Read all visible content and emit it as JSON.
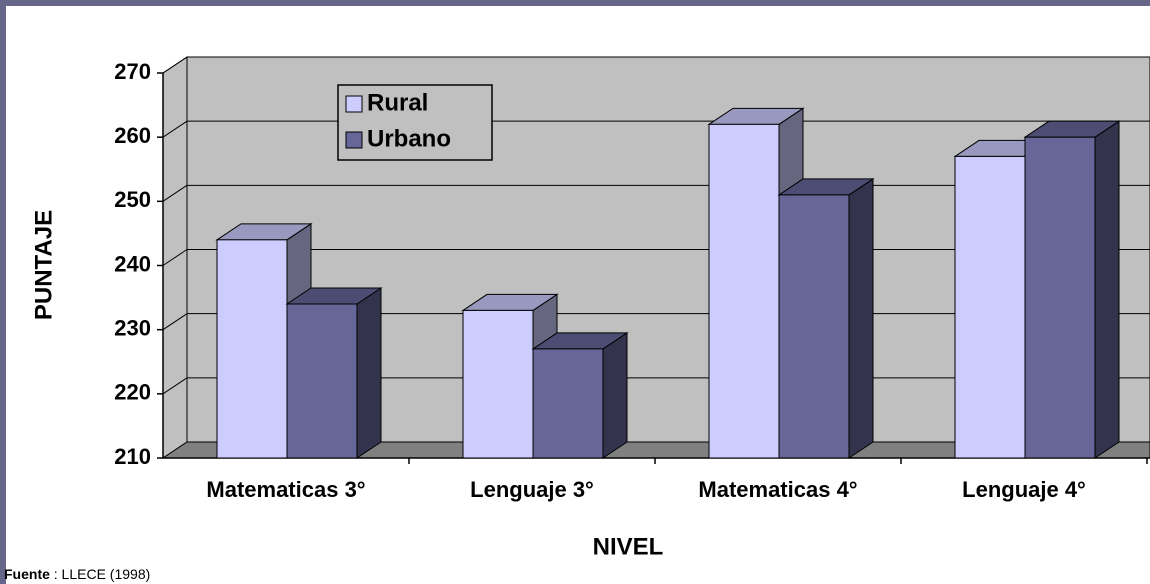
{
  "chart_data": {
    "type": "bar3d",
    "x_label": "NIVEL",
    "y_label": "PUNTAJE",
    "categories": [
      "Matematicas 3°",
      "Lenguaje 3°",
      "Matematicas 4°",
      "Lenguaje 4°"
    ],
    "series": [
      {
        "name": "Rural",
        "color": "#ccccff",
        "values": [
          244,
          233,
          262,
          257
        ]
      },
      {
        "name": "Urbano",
        "color": "#666699",
        "values": [
          234,
          227,
          251,
          260
        ]
      }
    ],
    "ylim": [
      210,
      270
    ],
    "yticks": [
      210,
      220,
      230,
      240,
      250,
      260,
      270
    ],
    "grid": true,
    "source": {
      "label": "Fuente",
      "text": " : LLECE (1998)"
    }
  }
}
